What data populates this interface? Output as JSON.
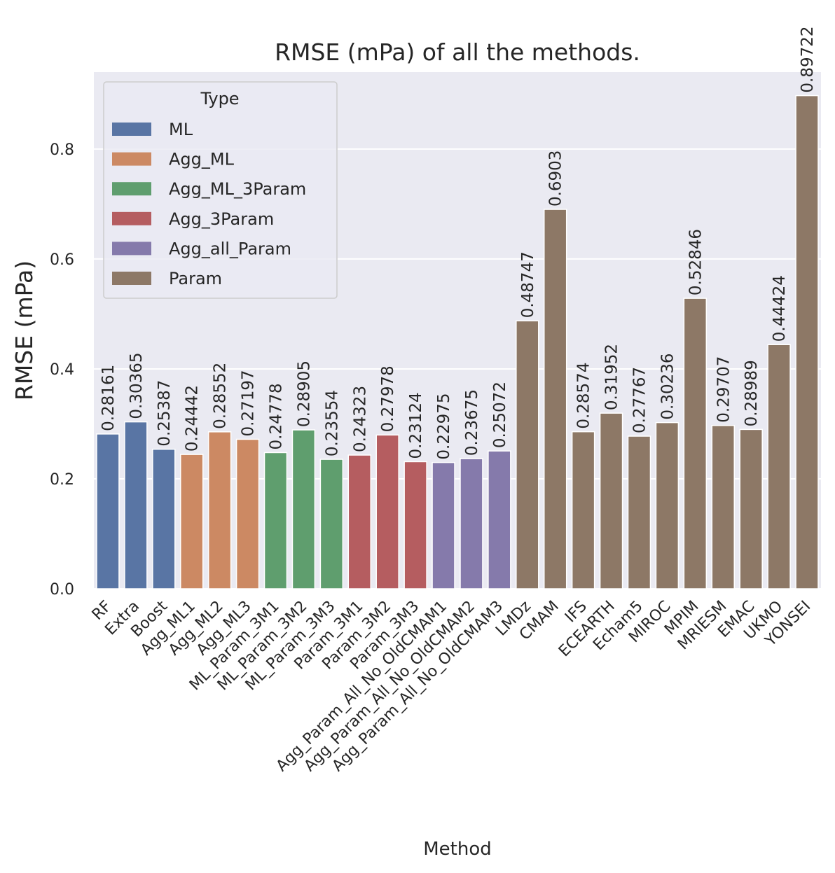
{
  "chart_data": {
    "type": "bar",
    "title": "RMSE (mPa) of all the methods.",
    "xlabel": "Method",
    "ylabel": "RMSE (mPa)",
    "ylim": [
      0,
      0.94
    ],
    "yticks": [
      "0.0",
      "0.2",
      "0.4",
      "0.6",
      "0.8"
    ],
    "grid": true,
    "legend": {
      "title": "Type",
      "placement": "top-left",
      "entries": [
        "ML",
        "Agg_ML",
        "Agg_ML_3Param",
        "Agg_3Param",
        "Agg_all_Param",
        "Param"
      ]
    },
    "type_colors": {
      "ML": "#5975a4",
      "Agg_ML": "#cc8963",
      "Agg_ML_3Param": "#5f9e6e",
      "Agg_3Param": "#b55d60",
      "Agg_all_Param": "#857aab",
      "Param": "#8d7866"
    },
    "categories": [
      "RF",
      "Extra",
      "Boost",
      "Agg_ML1",
      "Agg_ML2",
      "Agg_ML3",
      "ML_Param_3M1",
      "ML_Param_3M2",
      "ML_Param_3M3",
      "Param_3M1",
      "Param_3M2",
      "Param_3M3",
      "Agg_Param_All_No_OldCMAM1",
      "Agg_Param_All_No_OldCMAM2",
      "Agg_Param_All_No_OldCMAM3",
      "LMDz",
      "CMAM",
      "IFS",
      "ECEARTH",
      "Echam5",
      "MIROC",
      "MPIM",
      "MRIESM",
      "EMAC",
      "UKMO",
      "YONSEI"
    ],
    "values": [
      0.28161,
      0.30365,
      0.25387,
      0.24442,
      0.28552,
      0.27197,
      0.24778,
      0.28905,
      0.23554,
      0.24323,
      0.27978,
      0.23124,
      0.22975,
      0.23675,
      0.25072,
      0.48747,
      0.6903,
      0.28574,
      0.31952,
      0.27767,
      0.30236,
      0.52846,
      0.29707,
      0.28989,
      0.44424,
      0.89722
    ],
    "value_labels": [
      "0.28161",
      "0.30365",
      "0.25387",
      "0.24442",
      "0.28552",
      "0.27197",
      "0.24778",
      "0.28905",
      "0.23554",
      "0.24323",
      "0.27978",
      "0.23124",
      "0.22975",
      "0.23675",
      "0.25072",
      "0.48747",
      "0.6903",
      "0.28574",
      "0.31952",
      "0.27767",
      "0.30236",
      "0.52846",
      "0.29707",
      "0.28989",
      "0.44424",
      "0.89722"
    ],
    "types": [
      "ML",
      "ML",
      "ML",
      "Agg_ML",
      "Agg_ML",
      "Agg_ML",
      "Agg_ML_3Param",
      "Agg_ML_3Param",
      "Agg_ML_3Param",
      "Agg_3Param",
      "Agg_3Param",
      "Agg_3Param",
      "Agg_all_Param",
      "Agg_all_Param",
      "Agg_all_Param",
      "Param",
      "Param",
      "Param",
      "Param",
      "Param",
      "Param",
      "Param",
      "Param",
      "Param",
      "Param",
      "Param"
    ]
  }
}
